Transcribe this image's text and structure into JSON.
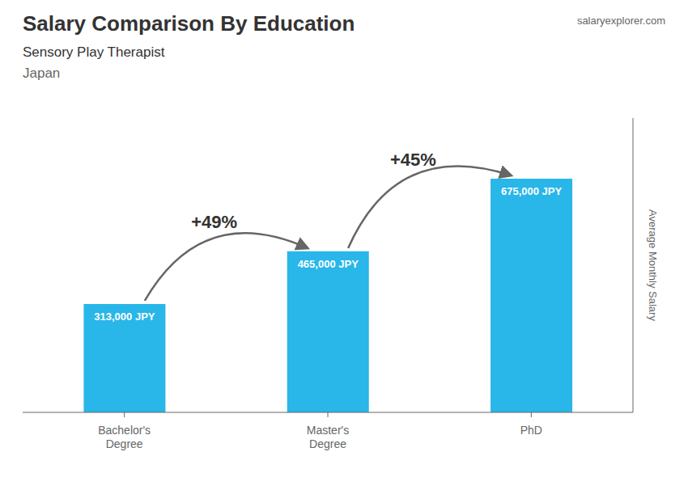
{
  "chart_data": {
    "type": "bar",
    "title": "Salary Comparison By Education",
    "subtitle": "Sensory Play Therapist",
    "annotations": [
      {
        "text": "Japan"
      },
      {
        "text": "salaryexplorer.com"
      },
      {
        "text": "+49%",
        "from": "Bachelor's\nDegree",
        "to": "Master's\nDegree"
      },
      {
        "text": "+45%",
        "from": "Master's\nDegree",
        "to": "PhD"
      }
    ],
    "ylabel": "Average Monthly Salary",
    "categories": [
      "Bachelor's\nDegree",
      "Master's\nDegree",
      "PhD"
    ],
    "values": [
      313000,
      465000,
      675000
    ],
    "value_labels": [
      "313,000 JPY",
      "465,000 JPY",
      "675,000 JPY"
    ],
    "data_labels": true,
    "color": "#29b6e8",
    "ylim": [
      0,
      850000
    ],
    "yticks": [],
    "tick_labels": "x",
    "grid": false
  }
}
